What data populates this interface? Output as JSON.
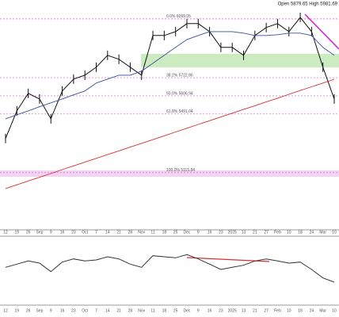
{
  "chart_data": [
    {
      "type": "line",
      "title": "Open 5879.65 High 5981.69",
      "categories": [
        "12",
        "19",
        "26",
        "Sep",
        "9",
        "16",
        "23",
        "Oct",
        "7",
        "14",
        "21",
        "28",
        "Nov",
        "11",
        "18",
        "25",
        "Dec",
        "9",
        "16",
        "23",
        "2025",
        "13",
        "21",
        "27",
        "Feb",
        "10",
        "18",
        "24",
        "Mar",
        "10"
      ],
      "series": [
        {
          "color": "#111111",
          "values": [
            5334,
            5511,
            5623,
            5587,
            5460,
            5638,
            5714,
            5739,
            5790,
            5866,
            5841,
            5790,
            5739,
            5993,
            5993,
            6018,
            6069,
            6069,
            6018,
            5917,
            5917,
            5866,
            5993,
            6044,
            6069,
            6018,
            6109,
            6018,
            5790,
            5587
          ]
        },
        {
          "color": "#3a4fa0",
          "values": [
            5460,
            5486,
            5511,
            5537,
            5562,
            5587,
            5613,
            5638,
            5689,
            5714,
            5739,
            5739,
            5765,
            5815,
            5866,
            5917,
            5967,
            5993,
            6018,
            6018,
            6018,
            6008,
            5993,
            5993,
            5998,
            6008,
            6008,
            5993,
            5917,
            5866
          ]
        },
        {
          "color": "#d93030",
          "values": [
            5014,
            5038,
            5062,
            5086,
            5110,
            5135,
            5159,
            5183,
            5207,
            5231,
            5255,
            5279,
            5303,
            5327,
            5351,
            5376,
            5400,
            5424,
            5448,
            5472,
            5496,
            5520,
            5544,
            5568,
            5592,
            5617,
            5641,
            5665,
            5689,
            5713
          ]
        }
      ],
      "fib_levels": [
        {
          "label": "0.0% 6099.05",
          "value": 6099.05
        },
        {
          "label": "38.2% 5722.86",
          "value": 5722.86
        },
        {
          "label": "50.0% 5606.94",
          "value": 5606.94
        },
        {
          "label": "61.8% 5491.04",
          "value": 5491.04
        },
        {
          "label": "100.0% 5115.84",
          "value": 5115.84
        }
      ],
      "ylim": [
        4750,
        6220
      ]
    },
    {
      "type": "line",
      "series": [
        {
          "color": "#333333",
          "values": [
            52,
            55,
            58,
            56,
            48,
            57,
            60,
            58,
            59,
            62,
            60,
            55,
            52,
            63,
            62,
            61,
            64,
            60,
            55,
            50,
            52,
            54,
            58,
            60,
            58,
            56,
            57,
            50,
            42,
            38
          ]
        }
      ],
      "ylim": [
        20,
        80
      ]
    }
  ]
}
